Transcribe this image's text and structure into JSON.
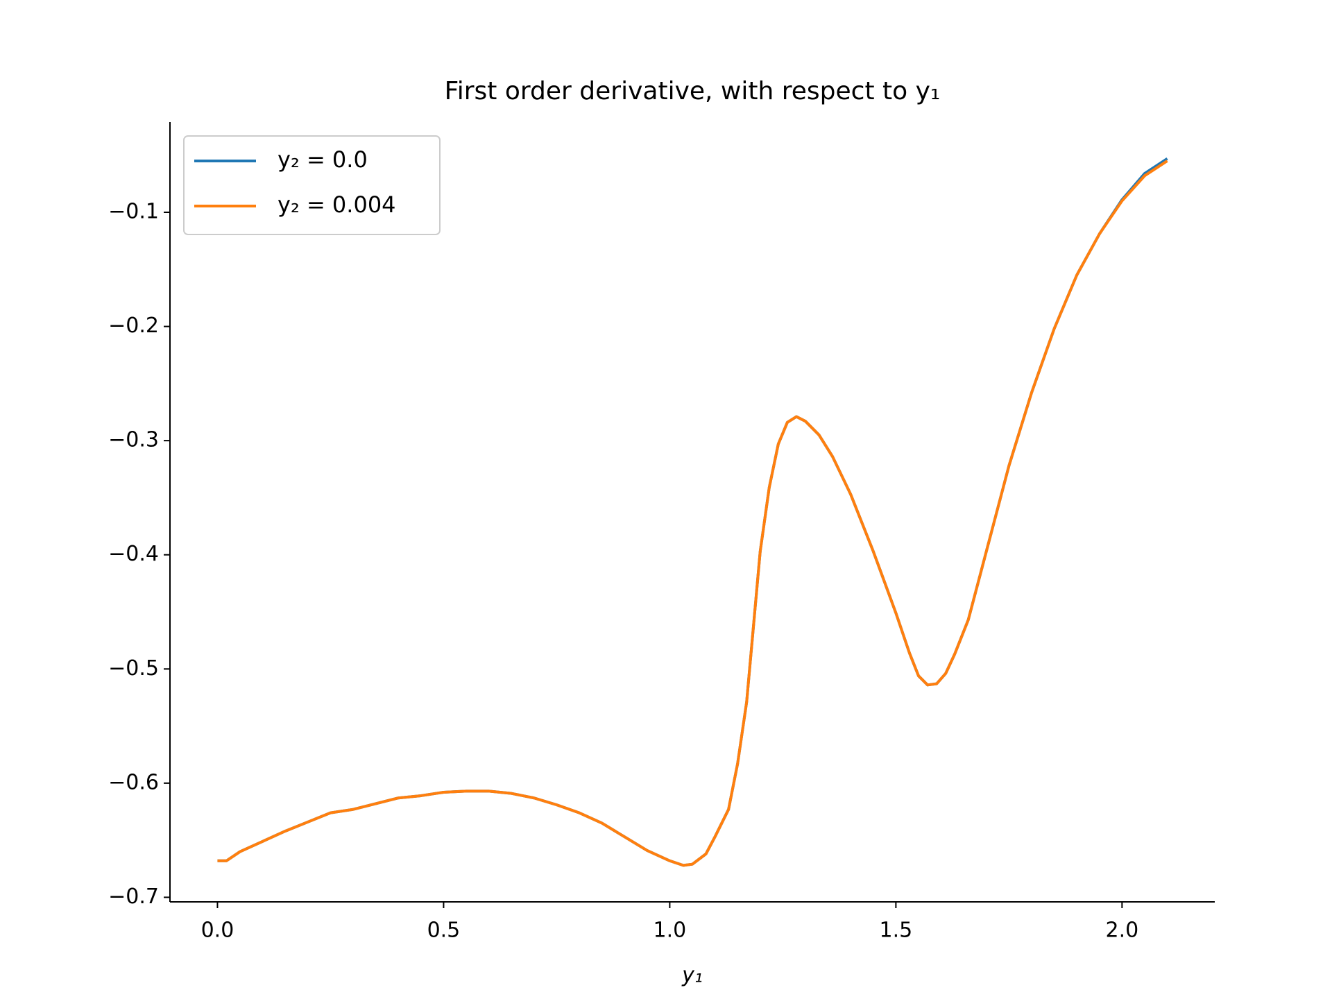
{
  "chart_data": {
    "type": "line",
    "title": "First order derivative, with respect to y₁",
    "x_label": "y₁",
    "x": [
      0,
      0.02,
      0.05,
      0.1,
      0.15,
      0.2,
      0.25,
      0.3,
      0.35,
      0.4,
      0.45,
      0.5,
      0.55,
      0.6,
      0.65,
      0.7,
      0.75,
      0.8,
      0.85,
      0.9,
      0.95,
      1.0,
      1.03,
      1.05,
      1.08,
      1.1,
      1.13,
      1.15,
      1.17,
      1.2,
      1.22,
      1.24,
      1.26,
      1.28,
      1.3,
      1.33,
      1.36,
      1.4,
      1.45,
      1.5,
      1.53,
      1.55,
      1.57,
      1.59,
      1.61,
      1.63,
      1.66,
      1.7,
      1.75,
      1.8,
      1.85,
      1.9,
      1.95,
      2.0,
      2.05,
      2.1
    ],
    "series": [
      {
        "name": "y₂ = 0.0",
        "color": "#1f77b4",
        "values": [
          -0.668,
          -0.668,
          -0.66,
          -0.651,
          -0.642,
          -0.634,
          -0.626,
          -0.623,
          -0.618,
          -0.613,
          -0.611,
          -0.608,
          -0.607,
          -0.607,
          -0.609,
          -0.613,
          -0.619,
          -0.626,
          -0.635,
          -0.647,
          -0.659,
          -0.668,
          -0.672,
          -0.671,
          -0.662,
          -0.647,
          -0.623,
          -0.583,
          -0.529,
          -0.397,
          -0.341,
          -0.303,
          -0.284,
          -0.279,
          -0.283,
          -0.295,
          -0.314,
          -0.347,
          -0.397,
          -0.451,
          -0.486,
          -0.506,
          -0.514,
          -0.513,
          -0.504,
          -0.487,
          -0.457,
          -0.397,
          -0.322,
          -0.258,
          -0.202,
          -0.155,
          -0.119,
          -0.089,
          -0.066,
          -0.053
        ]
      },
      {
        "name": "y₂ = 0.004",
        "color": "#ff7f0e",
        "values": [
          -0.668,
          -0.668,
          -0.66,
          -0.651,
          -0.642,
          -0.634,
          -0.626,
          -0.623,
          -0.618,
          -0.613,
          -0.611,
          -0.608,
          -0.607,
          -0.607,
          -0.609,
          -0.613,
          -0.619,
          -0.626,
          -0.635,
          -0.647,
          -0.659,
          -0.668,
          -0.672,
          -0.671,
          -0.662,
          -0.647,
          -0.623,
          -0.583,
          -0.529,
          -0.397,
          -0.341,
          -0.303,
          -0.284,
          -0.279,
          -0.283,
          -0.295,
          -0.314,
          -0.347,
          -0.397,
          -0.451,
          -0.486,
          -0.506,
          -0.514,
          -0.513,
          -0.504,
          -0.487,
          -0.457,
          -0.397,
          -0.322,
          -0.258,
          -0.202,
          -0.155,
          -0.119,
          -0.09,
          -0.068,
          -0.055
        ]
      }
    ],
    "xlim": [
      -0.105,
      2.205
    ],
    "ylim": [
      -0.704,
      -0.021
    ],
    "xticks": [
      {
        "value": 0,
        "label": "0.0"
      },
      0.5,
      {
        "value": 1,
        "label": "1.0"
      },
      1.5,
      {
        "value": 2,
        "label": "2.0"
      }
    ],
    "yticks": [
      {
        "value": -0.7,
        "label": "−0.7"
      },
      {
        "value": -0.6,
        "label": "−0.6"
      },
      {
        "value": -0.5,
        "label": "−0.5"
      },
      {
        "value": -0.4,
        "label": "−0.4"
      },
      {
        "value": -0.3,
        "label": "−0.3"
      },
      {
        "value": -0.2,
        "label": "−0.2"
      },
      {
        "value": -0.1,
        "label": "−0.1"
      }
    ],
    "legend": "upper left",
    "grid": false
  }
}
